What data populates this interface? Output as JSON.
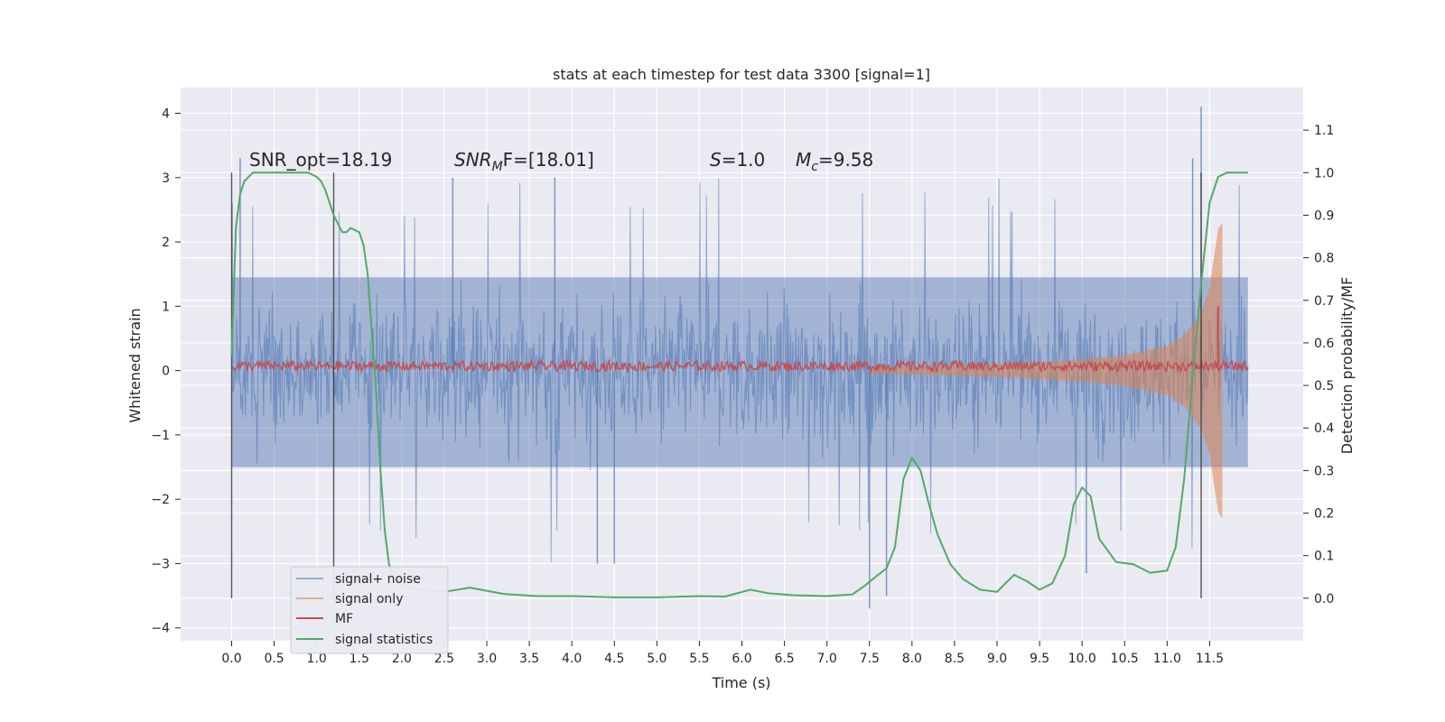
{
  "chart_data": {
    "type": "line",
    "title": "stats at each timestep for test data 3300 [signal=1]",
    "xlabel": "Time (s)",
    "ylabel": "Whitened strain",
    "y2label": "Detection probability/MF",
    "xlim": [
      -0.6,
      12.6
    ],
    "ylim": [
      -4.2,
      4.4
    ],
    "y2lim": [
      -0.1,
      1.2
    ],
    "x_ticks": [
      0.0,
      0.5,
      1.0,
      1.5,
      2.0,
      2.5,
      3.0,
      3.5,
      4.0,
      4.5,
      5.0,
      5.5,
      6.0,
      6.5,
      7.0,
      7.5,
      8.0,
      8.5,
      9.0,
      9.5,
      10.0,
      10.5,
      11.0,
      11.5
    ],
    "y_ticks": [
      -4,
      -3,
      -2,
      -1,
      0,
      1,
      2,
      3,
      4
    ],
    "y_tick_labels": [
      "−4",
      "−3",
      "−2",
      "−1",
      "0",
      "1",
      "2",
      "3",
      "4"
    ],
    "y2_ticks": [
      0.0,
      0.1,
      0.2,
      0.3,
      0.4,
      0.5,
      0.6,
      0.7,
      0.8,
      0.9,
      1.0,
      1.1
    ],
    "grid": true,
    "legend_placement": "lower-left",
    "annotations": {
      "snr_opt": "SNR_opt=18.19",
      "snr_mf_name": "SNR",
      "snr_mf_sub": "M",
      "snr_mf_rest": "F=[18.01]",
      "s_name": "S",
      "s_rest": "=1.0",
      "mc_name": "M",
      "mc_sub": "c",
      "mc_rest": "=9.58"
    },
    "vlines_x": [
      0.0,
      1.2,
      11.4
    ],
    "colors": {
      "background": "#eaeaf2",
      "grid": "#ffffff",
      "signal_noise": "#4c72b0",
      "signal_only": "#dd8452",
      "mf": "#c44e52",
      "stats": "#55a868",
      "vline": "#3a3a3a"
    },
    "series": [
      {
        "name": "signal+ noise",
        "axis": "left",
        "description_range": "noise band between about -2 and 2 with spikes to 4.1 and -3.7",
        "t_start": 0.0,
        "t_end": 11.95,
        "band": [
          -1.5,
          1.45
        ],
        "max": 4.1,
        "min": -3.7
      },
      {
        "name": "signal only",
        "axis": "left",
        "x": [
          7.5,
          8.0,
          8.5,
          9.0,
          9.5,
          10.0,
          10.5,
          11.0,
          11.2,
          11.4,
          11.5,
          11.6,
          11.65
        ],
        "amplitude": [
          0.05,
          0.06,
          0.08,
          0.1,
          0.13,
          0.17,
          0.24,
          0.38,
          0.55,
          0.9,
          1.3,
          2.2,
          2.3
        ]
      },
      {
        "name": "MF",
        "axis": "left",
        "level": 0.07,
        "jitter": 0.08,
        "peak_x": 11.6,
        "peak_y": 1.0
      },
      {
        "name": "signal statistics",
        "axis": "right",
        "x": [
          0.0,
          0.05,
          0.1,
          0.15,
          0.25,
          0.4,
          0.6,
          0.8,
          0.9,
          1.0,
          1.05,
          1.1,
          1.15,
          1.2,
          1.25,
          1.3,
          1.35,
          1.4,
          1.5,
          1.55,
          1.6,
          1.65,
          1.7,
          1.75,
          1.8,
          1.85,
          1.9,
          2.0,
          2.2,
          2.5,
          2.8,
          3.2,
          3.6,
          4.0,
          4.5,
          5.0,
          5.5,
          5.8,
          5.95,
          6.1,
          6.3,
          6.6,
          7.0,
          7.3,
          7.45,
          7.6,
          7.7,
          7.8,
          7.9,
          8.0,
          8.1,
          8.2,
          8.3,
          8.45,
          8.6,
          8.8,
          9.0,
          9.1,
          9.2,
          9.35,
          9.5,
          9.65,
          9.8,
          9.9,
          10.0,
          10.1,
          10.2,
          10.4,
          10.6,
          10.8,
          11.0,
          11.1,
          11.2,
          11.3,
          11.4,
          11.5,
          11.6,
          11.7,
          11.8,
          11.95
        ],
        "y": [
          0.57,
          0.87,
          0.95,
          0.98,
          1.0,
          1.0,
          1.0,
          1.0,
          1.0,
          0.99,
          0.98,
          0.96,
          0.93,
          0.9,
          0.88,
          0.86,
          0.86,
          0.87,
          0.86,
          0.83,
          0.76,
          0.62,
          0.48,
          0.3,
          0.16,
          0.08,
          0.05,
          0.03,
          0.02,
          0.015,
          0.025,
          0.01,
          0.005,
          0.005,
          0.002,
          0.002,
          0.005,
          0.004,
          0.012,
          0.02,
          0.012,
          0.007,
          0.005,
          0.009,
          0.03,
          0.055,
          0.07,
          0.12,
          0.28,
          0.33,
          0.3,
          0.22,
          0.15,
          0.08,
          0.045,
          0.02,
          0.015,
          0.035,
          0.055,
          0.04,
          0.02,
          0.035,
          0.1,
          0.22,
          0.26,
          0.24,
          0.14,
          0.085,
          0.08,
          0.06,
          0.065,
          0.12,
          0.28,
          0.52,
          0.74,
          0.93,
          0.99,
          1.0,
          1.0,
          1.0
        ]
      }
    ]
  }
}
